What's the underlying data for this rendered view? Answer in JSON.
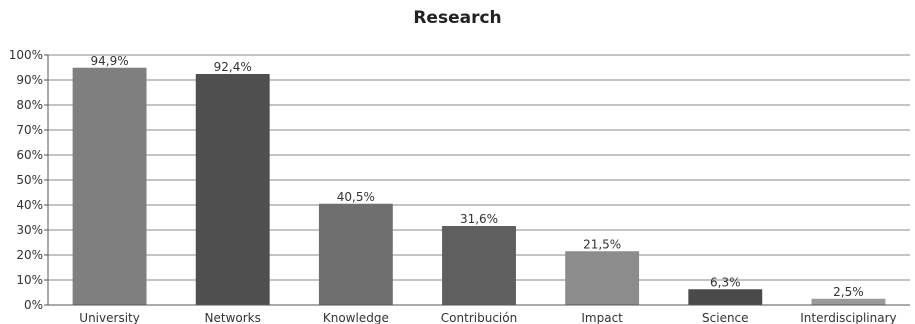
{
  "chart_data": {
    "type": "bar",
    "title": "Research",
    "categories": [
      "University",
      "Networks",
      "Knowledge",
      "Contribución",
      "Impact",
      "Science",
      "Interdisciplinary"
    ],
    "values": [
      94.9,
      92.4,
      40.5,
      31.6,
      21.5,
      6.3,
      2.5
    ],
    "data_labels": [
      "94,9%",
      "92,4%",
      "40,5%",
      "31,6%",
      "21,5%",
      "6,3%",
      "2,5%"
    ],
    "bar_colors": [
      "#7f7f7f",
      "#4f4f4f",
      "#6f6f6f",
      "#5f5f5f",
      "#8c8c8c",
      "#4a4a4a",
      "#9a9a9a"
    ],
    "ylim": [
      0,
      100
    ],
    "y_ticks": [
      0,
      10,
      20,
      30,
      40,
      50,
      60,
      70,
      80,
      90,
      100
    ],
    "y_tick_labels": [
      "0%",
      "10%",
      "20%",
      "30%",
      "40%",
      "50%",
      "60%",
      "70%",
      "80%",
      "90%",
      "100%"
    ],
    "xlabel": "",
    "ylabel": "",
    "grid": true,
    "legend": "none"
  }
}
